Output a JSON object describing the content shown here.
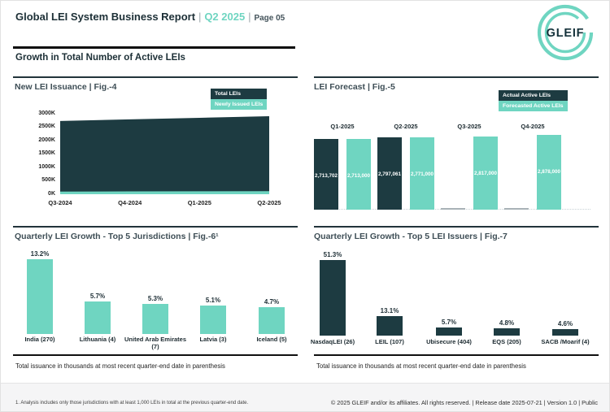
{
  "header": {
    "title": "Global LEI System Business Report",
    "sep": "|",
    "quarter": "Q2 2025",
    "page_label": "Page 05",
    "logo_text": "GLEIF",
    "section_title": "Growth in Total Number of Active LEIs"
  },
  "colors": {
    "dark_teal": "#1d3b41",
    "light_teal": "#6fd5c1",
    "placeholder_gray": "#a9b2b7",
    "accent": "#6fd5c1"
  },
  "footnotes": {
    "fig6": "Total issuance in thousands at most recent quarter-end date in parenthesis",
    "fig7": "Total issuance in thousands at most recent quarter-end date in parenthesis"
  },
  "footer": {
    "note": "1. Analysis includes only those jurisdictions with at least 1,000 LEIs in total at the previous quarter-end date.",
    "copyright": "© 2025 GLEIF and/or its affiliates. All rights reserved. | Release date 2025-07-21 | Version 1.0 | Public"
  },
  "chart_data": [
    {
      "type": "area",
      "title": "New LEI Issuance | Fig.-4",
      "x": [
        "Q3-2024",
        "Q4-2024",
        "Q1-2025",
        "Q2-2025"
      ],
      "yticks": [
        "3000K",
        "2500K",
        "2000K",
        "1500K",
        "1000K",
        "500K",
        "0K"
      ],
      "ylim": [
        0,
        3000000
      ],
      "legend_position": "top-right",
      "series": [
        {
          "name": "Total LEIs",
          "values": [
            2730000,
            2790000,
            2850000,
            2910000
          ]
        },
        {
          "name": "Newly Issued LEIs",
          "values": [
            100000,
            105000,
            110000,
            115000
          ]
        }
      ]
    },
    {
      "type": "bar",
      "title": "LEI Forecast | Fig.-5",
      "categories": [
        "Q1-2025",
        "Q2-2025",
        "Q3-2025",
        "Q4-2025"
      ],
      "legend_position": "top-right",
      "series": [
        {
          "name": "Actual Active LEIs",
          "values": [
            2713702,
            2797061,
            null,
            null
          ],
          "labels": [
            "2,713,702",
            "2,797,061",
            null,
            null
          ]
        },
        {
          "name": "Forecasted Active LEIs",
          "values": [
            2713000,
            2771000,
            2817000,
            2878000
          ],
          "labels": [
            "2,713,000",
            "2,771,000",
            "2,817,000",
            "2,878,000"
          ]
        }
      ]
    },
    {
      "type": "bar",
      "title": "Quarterly LEI Growth - Top 5 Jurisdictions | Fig.-6¹",
      "categories": [
        "India (270)",
        "Lithuania (4)",
        "United Arab Emirates (7)",
        "Latvia (3)",
        "Iceland (5)"
      ],
      "values": [
        13.2,
        5.7,
        5.3,
        5.1,
        4.7
      ],
      "labels": [
        "13.2%",
        "5.7%",
        "5.3%",
        "5.1%",
        "4.7%"
      ]
    },
    {
      "type": "bar",
      "title": "Quarterly LEI Growth - Top 5 LEI Issuers | Fig.-7",
      "categories": [
        "NasdaqLEI (26)",
        "LEIL (107)",
        "Ubisecure (404)",
        "EQS (205)",
        "SACB /Moarif (4)"
      ],
      "values": [
        51.3,
        13.1,
        5.7,
        4.8,
        4.6
      ],
      "labels": [
        "51.3%",
        "13.1%",
        "5.7%",
        "4.8%",
        "4.6%"
      ]
    }
  ]
}
